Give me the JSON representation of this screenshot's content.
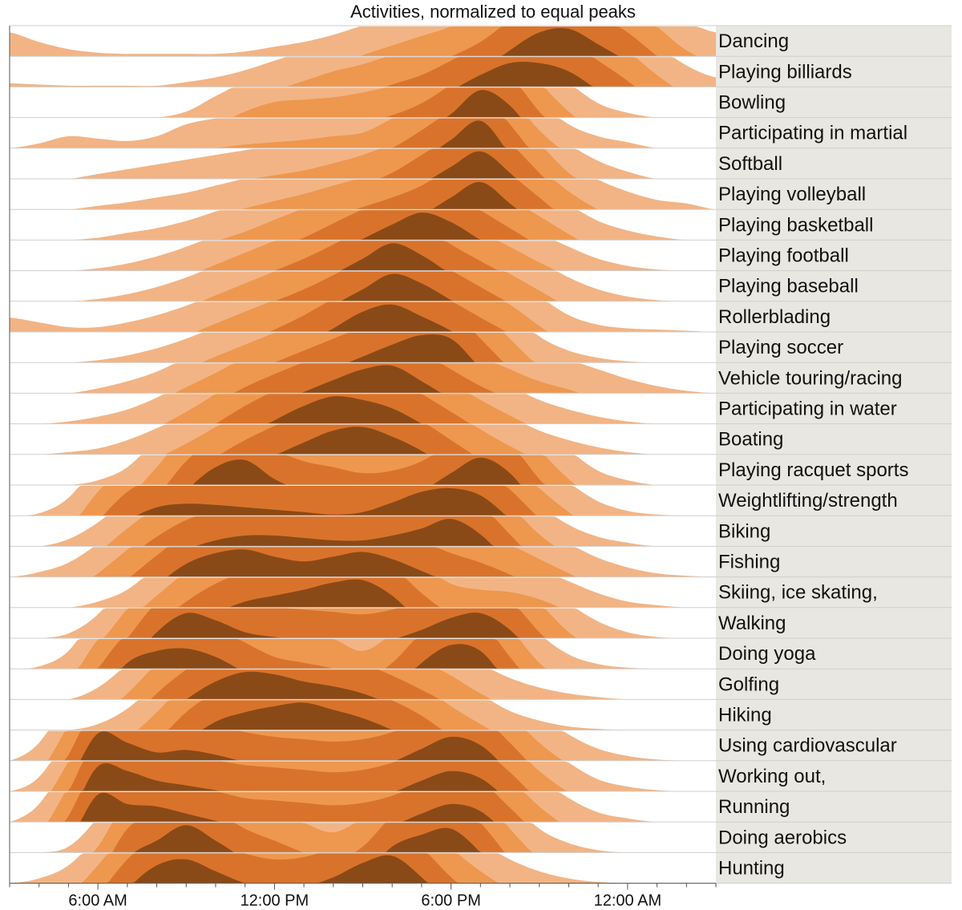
{
  "chart_data": {
    "type": "area",
    "subtype": "horizon",
    "title": "Activities, normalized to equal peaks",
    "x_ticks": [
      "6:00 AM",
      "12:00 PM",
      "6:00 PM",
      "12:00 AM"
    ],
    "x_tick_hours": [
      6,
      12,
      18,
      24
    ],
    "xlim_hours": [
      3,
      27
    ],
    "colors": {
      "band1": "#F2B484",
      "band2": "#EE974F",
      "band3": "#D9732B",
      "band4": "#8A4A17",
      "label_panel": "#E8E7E1",
      "separator": "#CFCFCF"
    },
    "hours": [
      3,
      4,
      5,
      6,
      7,
      8,
      9,
      10,
      11,
      12,
      13,
      14,
      15,
      16,
      17,
      18,
      19,
      20,
      21,
      22,
      23,
      24,
      25,
      26,
      27
    ],
    "rows": [
      {
        "label": "Dancing",
        "values": [
          0.2,
          0.12,
          0.06,
          0.03,
          0.02,
          0.02,
          0.02,
          0.02,
          0.04,
          0.08,
          0.12,
          0.18,
          0.26,
          0.34,
          0.42,
          0.5,
          0.62,
          0.8,
          0.95,
          0.98,
          0.85,
          0.7,
          0.5,
          0.3,
          0.2
        ]
      },
      {
        "label": "Playing billiards",
        "values": [
          0.03,
          0.02,
          0.01,
          0.01,
          0.01,
          0.01,
          0.04,
          0.08,
          0.14,
          0.22,
          0.3,
          0.38,
          0.44,
          0.52,
          0.6,
          0.72,
          0.85,
          0.95,
          0.95,
          0.88,
          0.72,
          0.55,
          0.35,
          0.18,
          0.08
        ]
      },
      {
        "label": "Bowling",
        "values": [
          0,
          0,
          0,
          0,
          0,
          0,
          0.05,
          0.18,
          0.3,
          0.38,
          0.4,
          0.42,
          0.46,
          0.52,
          0.62,
          0.78,
          0.98,
          0.85,
          0.55,
          0.3,
          0.12,
          0.04,
          0,
          0,
          0
        ]
      },
      {
        "label": "Participating in martial",
        "values": [
          0,
          0.04,
          0.1,
          0.08,
          0.06,
          0.1,
          0.2,
          0.25,
          0.28,
          0.3,
          0.32,
          0.35,
          0.38,
          0.5,
          0.65,
          0.82,
          0.98,
          0.7,
          0.4,
          0.2,
          0.1,
          0.05,
          0,
          0,
          0
        ]
      },
      {
        "label": "Softball",
        "values": [
          0,
          0,
          0,
          0.04,
          0.08,
          0.12,
          0.16,
          0.2,
          0.24,
          0.28,
          0.32,
          0.38,
          0.45,
          0.55,
          0.7,
          0.85,
          0.98,
          0.8,
          0.55,
          0.3,
          0.15,
          0.06,
          0,
          0,
          0
        ]
      },
      {
        "label": "Playing volleyball",
        "values": [
          0,
          0,
          0,
          0.03,
          0.06,
          0.1,
          0.14,
          0.2,
          0.26,
          0.32,
          0.38,
          0.45,
          0.52,
          0.6,
          0.7,
          0.85,
          0.98,
          0.8,
          0.6,
          0.4,
          0.25,
          0.15,
          0.08,
          0.05,
          0
        ]
      },
      {
        "label": "Playing basketball",
        "values": [
          0,
          0,
          0,
          0.02,
          0.06,
          0.1,
          0.16,
          0.24,
          0.32,
          0.42,
          0.52,
          0.64,
          0.76,
          0.88,
          0.98,
          0.9,
          0.75,
          0.6,
          0.45,
          0.3,
          0.16,
          0.08,
          0.03,
          0,
          0
        ]
      },
      {
        "label": "Playing football",
        "values": [
          0,
          0,
          0,
          0.02,
          0.06,
          0.12,
          0.2,
          0.3,
          0.4,
          0.5,
          0.6,
          0.72,
          0.85,
          0.98,
          0.88,
          0.72,
          0.58,
          0.45,
          0.32,
          0.2,
          0.1,
          0.04,
          0.01,
          0,
          0
        ]
      },
      {
        "label": "Playing baseball",
        "values": [
          0,
          0,
          0,
          0.02,
          0.06,
          0.12,
          0.2,
          0.3,
          0.4,
          0.5,
          0.6,
          0.72,
          0.85,
          0.98,
          0.9,
          0.76,
          0.62,
          0.48,
          0.34,
          0.2,
          0.1,
          0.04,
          0.01,
          0,
          0
        ]
      },
      {
        "label": "Rollerblading",
        "values": [
          0.12,
          0.08,
          0.04,
          0.04,
          0.08,
          0.14,
          0.22,
          0.32,
          0.42,
          0.52,
          0.64,
          0.78,
          0.92,
          0.98,
          0.88,
          0.76,
          0.62,
          0.48,
          0.3,
          0.14,
          0.06,
          0.03,
          0.02,
          0.01,
          0
        ]
      },
      {
        "label": "Playing soccer",
        "values": [
          0,
          0,
          0,
          0.02,
          0.06,
          0.12,
          0.2,
          0.3,
          0.4,
          0.5,
          0.6,
          0.7,
          0.8,
          0.9,
          0.98,
          0.95,
          0.7,
          0.45,
          0.22,
          0.1,
          0.04,
          0.01,
          0,
          0,
          0
        ]
      },
      {
        "label": "Vehicle touring/racing",
        "values": [
          0,
          0,
          0,
          0.04,
          0.1,
          0.18,
          0.3,
          0.42,
          0.55,
          0.66,
          0.76,
          0.86,
          0.95,
          0.98,
          0.85,
          0.7,
          0.56,
          0.45,
          0.35,
          0.28,
          0.2,
          0.12,
          0.06,
          0.02,
          0
        ]
      },
      {
        "label": "Participating in water",
        "values": [
          0,
          0,
          0.02,
          0.06,
          0.12,
          0.22,
          0.35,
          0.5,
          0.65,
          0.78,
          0.9,
          0.98,
          0.95,
          0.88,
          0.75,
          0.6,
          0.45,
          0.32,
          0.2,
          0.12,
          0.06,
          0.02,
          0,
          0,
          0
        ]
      },
      {
        "label": "Boating",
        "values": [
          0,
          0,
          0.02,
          0.05,
          0.12,
          0.22,
          0.34,
          0.48,
          0.62,
          0.74,
          0.85,
          0.95,
          0.98,
          0.9,
          0.78,
          0.62,
          0.46,
          0.32,
          0.2,
          0.12,
          0.06,
          0.02,
          0,
          0,
          0
        ]
      },
      {
        "label": "Playing racquet sports",
        "values": [
          0,
          0,
          0,
          0.04,
          0.15,
          0.4,
          0.7,
          0.9,
          0.96,
          0.8,
          0.7,
          0.65,
          0.6,
          0.62,
          0.7,
          0.85,
          0.98,
          0.85,
          0.55,
          0.3,
          0.12,
          0.04,
          0,
          0,
          0
        ]
      },
      {
        "label": "Weightlifting/strength",
        "values": [
          0,
          0.02,
          0.15,
          0.45,
          0.7,
          0.82,
          0.85,
          0.84,
          0.82,
          0.8,
          0.78,
          0.76,
          0.78,
          0.86,
          0.95,
          0.98,
          0.92,
          0.72,
          0.48,
          0.28,
          0.12,
          0.04,
          0.01,
          0,
          0
        ]
      },
      {
        "label": "Biking",
        "values": [
          0,
          0,
          0.06,
          0.2,
          0.4,
          0.58,
          0.72,
          0.8,
          0.84,
          0.84,
          0.82,
          0.8,
          0.8,
          0.84,
          0.9,
          0.98,
          0.85,
          0.6,
          0.35,
          0.18,
          0.08,
          0.03,
          0,
          0,
          0
        ]
      },
      {
        "label": "Fishing",
        "values": [
          0,
          0.04,
          0.12,
          0.28,
          0.48,
          0.68,
          0.86,
          0.95,
          0.98,
          0.92,
          0.88,
          0.92,
          0.96,
          0.9,
          0.8,
          0.7,
          0.62,
          0.52,
          0.4,
          0.28,
          0.16,
          0.08,
          0.03,
          0.01,
          0
        ]
      },
      {
        "label": "Skiing, ice skating,",
        "values": [
          0,
          0,
          0,
          0.05,
          0.15,
          0.35,
          0.55,
          0.7,
          0.8,
          0.85,
          0.9,
          0.96,
          0.98,
          0.85,
          0.62,
          0.45,
          0.4,
          0.38,
          0.32,
          0.22,
          0.12,
          0.05,
          0.02,
          0,
          0
        ]
      },
      {
        "label": "Walking",
        "values": [
          0,
          0,
          0.04,
          0.2,
          0.5,
          0.8,
          0.96,
          0.9,
          0.8,
          0.76,
          0.74,
          0.72,
          0.7,
          0.74,
          0.82,
          0.92,
          0.96,
          0.82,
          0.55,
          0.3,
          0.14,
          0.05,
          0.01,
          0,
          0
        ]
      },
      {
        "label": "Doing yoga",
        "values": [
          0,
          0.02,
          0.15,
          0.5,
          0.8,
          0.9,
          0.92,
          0.85,
          0.72,
          0.6,
          0.55,
          0.5,
          0.4,
          0.55,
          0.8,
          0.95,
          0.9,
          0.6,
          0.3,
          0.12,
          0.04,
          0.01,
          0,
          0,
          0
        ]
      },
      {
        "label": "Golfing",
        "values": [
          0,
          0,
          0,
          0.1,
          0.3,
          0.55,
          0.75,
          0.9,
          0.98,
          0.96,
          0.9,
          0.86,
          0.8,
          0.7,
          0.58,
          0.45,
          0.3,
          0.18,
          0.1,
          0.05,
          0.02,
          0,
          0,
          0,
          0
        ]
      },
      {
        "label": "Hiking",
        "values": [
          0,
          0,
          0,
          0.05,
          0.18,
          0.4,
          0.65,
          0.82,
          0.9,
          0.95,
          0.98,
          0.92,
          0.85,
          0.75,
          0.62,
          0.45,
          0.3,
          0.16,
          0.08,
          0.03,
          0.01,
          0,
          0,
          0,
          0
        ]
      },
      {
        "label": "Using cardiovascular",
        "values": [
          0,
          0.15,
          0.55,
          0.98,
          0.9,
          0.82,
          0.84,
          0.8,
          0.74,
          0.7,
          0.68,
          0.66,
          0.68,
          0.74,
          0.85,
          0.95,
          0.88,
          0.65,
          0.4,
          0.22,
          0.1,
          0.04,
          0.01,
          0,
          0
        ]
      },
      {
        "label": "Working out,",
        "values": [
          0,
          0.12,
          0.5,
          0.96,
          0.92,
          0.84,
          0.8,
          0.76,
          0.72,
          0.7,
          0.68,
          0.66,
          0.68,
          0.74,
          0.84,
          0.92,
          0.86,
          0.66,
          0.42,
          0.24,
          0.1,
          0.04,
          0.01,
          0,
          0
        ]
      },
      {
        "label": "Running",
        "values": [
          0,
          0.15,
          0.55,
          0.98,
          0.9,
          0.88,
          0.82,
          0.76,
          0.7,
          0.68,
          0.66,
          0.64,
          0.66,
          0.72,
          0.82,
          0.9,
          0.84,
          0.62,
          0.38,
          0.2,
          0.08,
          0.03,
          0,
          0,
          0
        ]
      },
      {
        "label": "Doing aerobics",
        "values": [
          0,
          0,
          0.05,
          0.3,
          0.7,
          0.85,
          0.98,
          0.85,
          0.7,
          0.6,
          0.5,
          0.42,
          0.55,
          0.8,
          0.9,
          0.95,
          0.75,
          0.45,
          0.2,
          0.08,
          0.02,
          0,
          0,
          0,
          0
        ]
      },
      {
        "label": "Hunting",
        "values": [
          0,
          0.04,
          0.15,
          0.4,
          0.7,
          0.9,
          0.95,
          0.85,
          0.75,
          0.7,
          0.72,
          0.8,
          0.92,
          0.98,
          0.8,
          0.55,
          0.35,
          0.2,
          0.1,
          0.04,
          0.01,
          0,
          0,
          0,
          0
        ]
      }
    ]
  }
}
